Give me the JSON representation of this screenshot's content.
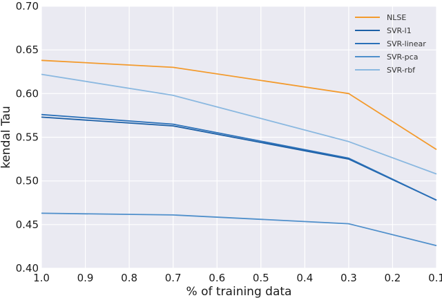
{
  "chart_data": {
    "type": "line",
    "title": "",
    "xlabel": "% of training data",
    "ylabel": "kendal Tau",
    "xlim": [
      1.0,
      0.1
    ],
    "ylim": [
      0.4,
      0.7
    ],
    "x_reversed": true,
    "xticks": [
      "1.0",
      "0.9",
      "0.8",
      "0.7",
      "0.6",
      "0.5",
      "0.4",
      "0.3",
      "0.2",
      "0.1"
    ],
    "yticks": [
      "0.40",
      "0.45",
      "0.50",
      "0.55",
      "0.60",
      "0.65",
      "0.70"
    ],
    "grid": true,
    "background": "#eaeaf2",
    "legend_position": "top-right",
    "series": [
      {
        "name": "NLSE",
        "color": "#f39a2c",
        "x": [
          1.0,
          0.7,
          0.3,
          0.1
        ],
        "values": [
          0.638,
          0.63,
          0.6,
          0.536
        ]
      },
      {
        "name": "SVR-l1",
        "color": "#1b5fa6",
        "x": [
          1.0,
          0.7,
          0.3,
          0.1
        ],
        "values": [
          0.573,
          0.563,
          0.525,
          0.478
        ]
      },
      {
        "name": "SVR-linear",
        "color": "#2a70b8",
        "x": [
          1.0,
          0.7,
          0.3,
          0.1
        ],
        "values": [
          0.576,
          0.565,
          0.526,
          0.478
        ]
      },
      {
        "name": "SVR-pca",
        "color": "#4f8fcb",
        "x": [
          1.0,
          0.7,
          0.3,
          0.1
        ],
        "values": [
          0.463,
          0.461,
          0.451,
          0.426
        ]
      },
      {
        "name": "SVR-rbf",
        "color": "#8ab8e0",
        "x": [
          1.0,
          0.7,
          0.3,
          0.1
        ],
        "values": [
          0.622,
          0.598,
          0.545,
          0.508
        ]
      }
    ]
  }
}
